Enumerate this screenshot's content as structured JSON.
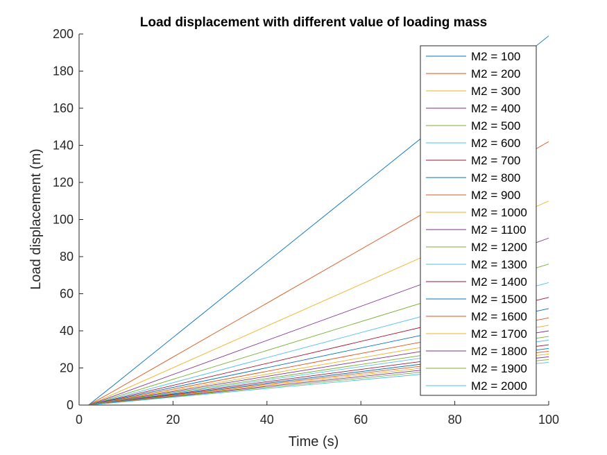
{
  "chart_data": {
    "type": "line",
    "title": "Load displacement with different value of loading mass",
    "xlabel": "Time (s)",
    "ylabel": "Load displacement (m)",
    "xlim": [
      0,
      100
    ],
    "ylim": [
      0,
      200
    ],
    "xticks": [
      0,
      20,
      40,
      60,
      80,
      100
    ],
    "yticks": [
      0,
      20,
      40,
      60,
      80,
      100,
      120,
      140,
      160,
      180,
      200
    ],
    "grid": false,
    "legend_position": "top-right",
    "lag_time": 2,
    "x": [
      0,
      2,
      7,
      100
    ],
    "series": [
      {
        "name": "M2 = 100",
        "color": "#0072BD",
        "values": [
          0,
          0,
          10.0,
          199
        ]
      },
      {
        "name": "M2 = 200",
        "color": "#D95319",
        "values": [
          0,
          0,
          7.0,
          142
        ]
      },
      {
        "name": "M2 = 300",
        "color": "#EDB120",
        "values": [
          0,
          0,
          5.5,
          110
        ]
      },
      {
        "name": "M2 = 400",
        "color": "#7E2F8E",
        "values": [
          0,
          0,
          4.5,
          90
        ]
      },
      {
        "name": "M2 = 500",
        "color": "#77AC30",
        "values": [
          0,
          0,
          3.8,
          76
        ]
      },
      {
        "name": "M2 = 600",
        "color": "#4DBEEE",
        "values": [
          0,
          0,
          3.3,
          66
        ]
      },
      {
        "name": "M2 = 700",
        "color": "#A2142F",
        "values": [
          0,
          0,
          2.9,
          58
        ]
      },
      {
        "name": "M2 = 800",
        "color": "#0072BD",
        "values": [
          0,
          0,
          2.6,
          52
        ]
      },
      {
        "name": "M2 = 900",
        "color": "#D95319",
        "values": [
          0,
          0,
          2.35,
          47
        ]
      },
      {
        "name": "M2 = 1000",
        "color": "#EDB120",
        "values": [
          0,
          0,
          2.15,
          43
        ]
      },
      {
        "name": "M2 = 1100",
        "color": "#7E2F8E",
        "values": [
          0,
          0,
          2.0,
          40
        ]
      },
      {
        "name": "M2 = 1200",
        "color": "#77AC30",
        "values": [
          0,
          0,
          1.85,
          37
        ]
      },
      {
        "name": "M2 = 1300",
        "color": "#4DBEEE",
        "values": [
          0,
          0,
          1.75,
          35
        ]
      },
      {
        "name": "M2 = 1400",
        "color": "#A2142F",
        "values": [
          0,
          0,
          1.62,
          32.5
        ]
      },
      {
        "name": "M2 = 1500",
        "color": "#0072BD",
        "values": [
          0,
          0,
          1.52,
          30.5
        ]
      },
      {
        "name": "M2 = 1600",
        "color": "#D95319",
        "values": [
          0,
          0,
          1.45,
          29
        ]
      },
      {
        "name": "M2 = 1700",
        "color": "#EDB120",
        "values": [
          0,
          0,
          1.38,
          27.5
        ]
      },
      {
        "name": "M2 = 1800",
        "color": "#7E2F8E",
        "values": [
          0,
          0,
          1.3,
          26
        ]
      },
      {
        "name": "M2 = 1900",
        "color": "#77AC30",
        "values": [
          0,
          0,
          1.22,
          24.5
        ]
      },
      {
        "name": "M2 = 2000",
        "color": "#4DBEEE",
        "values": [
          0,
          0,
          1.15,
          23
        ]
      }
    ]
  }
}
